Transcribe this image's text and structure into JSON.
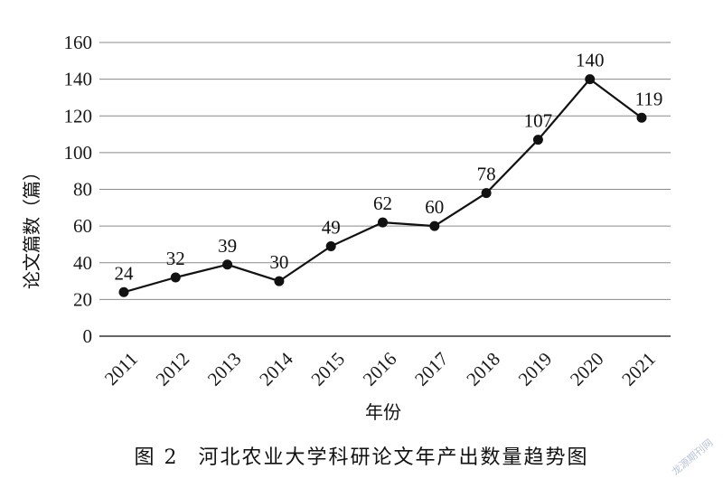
{
  "figure": {
    "number": "图 2",
    "caption": "河北农业大学科研论文年产出数量趋势图"
  },
  "watermark": "龙源期刊网",
  "chart_data": {
    "type": "line",
    "title": "",
    "xlabel": "年份",
    "ylabel": "论文篇数（篇）",
    "categories": [
      "2011",
      "2012",
      "2013",
      "2014",
      "2015",
      "2016",
      "2017",
      "2018",
      "2019",
      "2020",
      "2021"
    ],
    "series": [
      {
        "values": [
          24,
          32,
          39,
          30,
          49,
          62,
          60,
          78,
          107,
          140,
          119
        ]
      }
    ],
    "ylim": [
      0,
      160
    ],
    "yticks": [
      0,
      20,
      40,
      60,
      80,
      100,
      120,
      140,
      160
    ],
    "grid": true,
    "legend": "none",
    "colors": {
      "line": "#111111",
      "marker": "#111111",
      "grid": "#8a8a8a",
      "axis": "#333333"
    }
  }
}
